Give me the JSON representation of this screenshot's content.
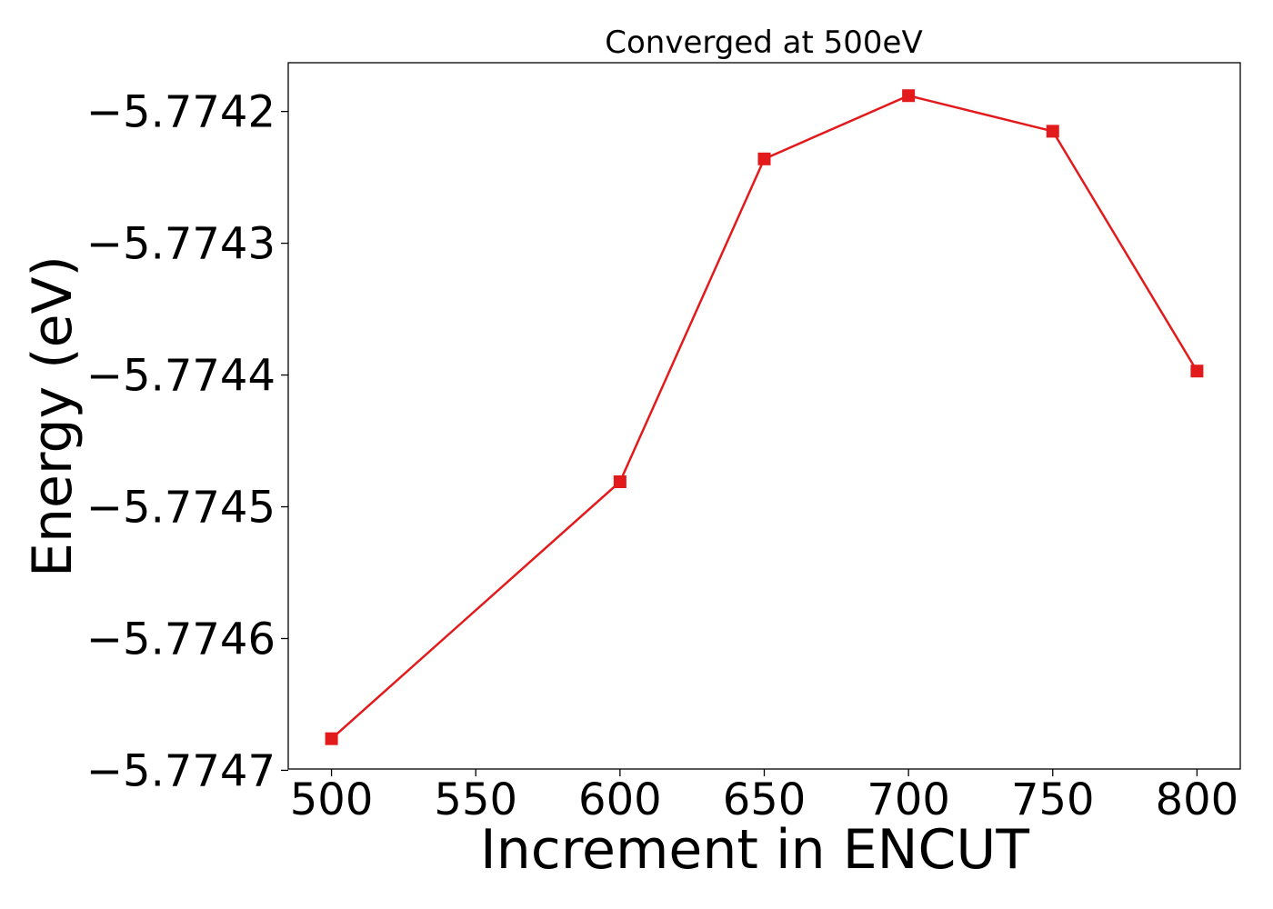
{
  "chart_data": {
    "type": "line",
    "title": "Converged at 500eV",
    "xlabel": "Increment in ENCUT",
    "ylabel": "Energy (eV)",
    "x": [
      500,
      600,
      650,
      700,
      750,
      800
    ],
    "series": [
      {
        "values": [
          -5.774676,
          -5.774481,
          -5.774236,
          -5.774188,
          -5.774215,
          -5.774397
        ],
        "color": "#e31a1c",
        "marker": "square"
      }
    ],
    "xticks": [
      500,
      550,
      600,
      650,
      700,
      750,
      800
    ],
    "xtick_labels": [
      "500",
      "550",
      "600",
      "650",
      "700",
      "750",
      "800"
    ],
    "yticks": [
      -5.7742,
      -5.7743,
      -5.7744,
      -5.7745,
      -5.7746,
      -5.7747
    ],
    "ytick_labels": [
      "−5.7742",
      "−5.7743",
      "−5.7744",
      "−5.7745",
      "−5.7746",
      "−5.7747"
    ],
    "xlim": [
      485,
      815
    ],
    "ylim": [
      -5.774699,
      -5.774163
    ],
    "grid": false
  }
}
